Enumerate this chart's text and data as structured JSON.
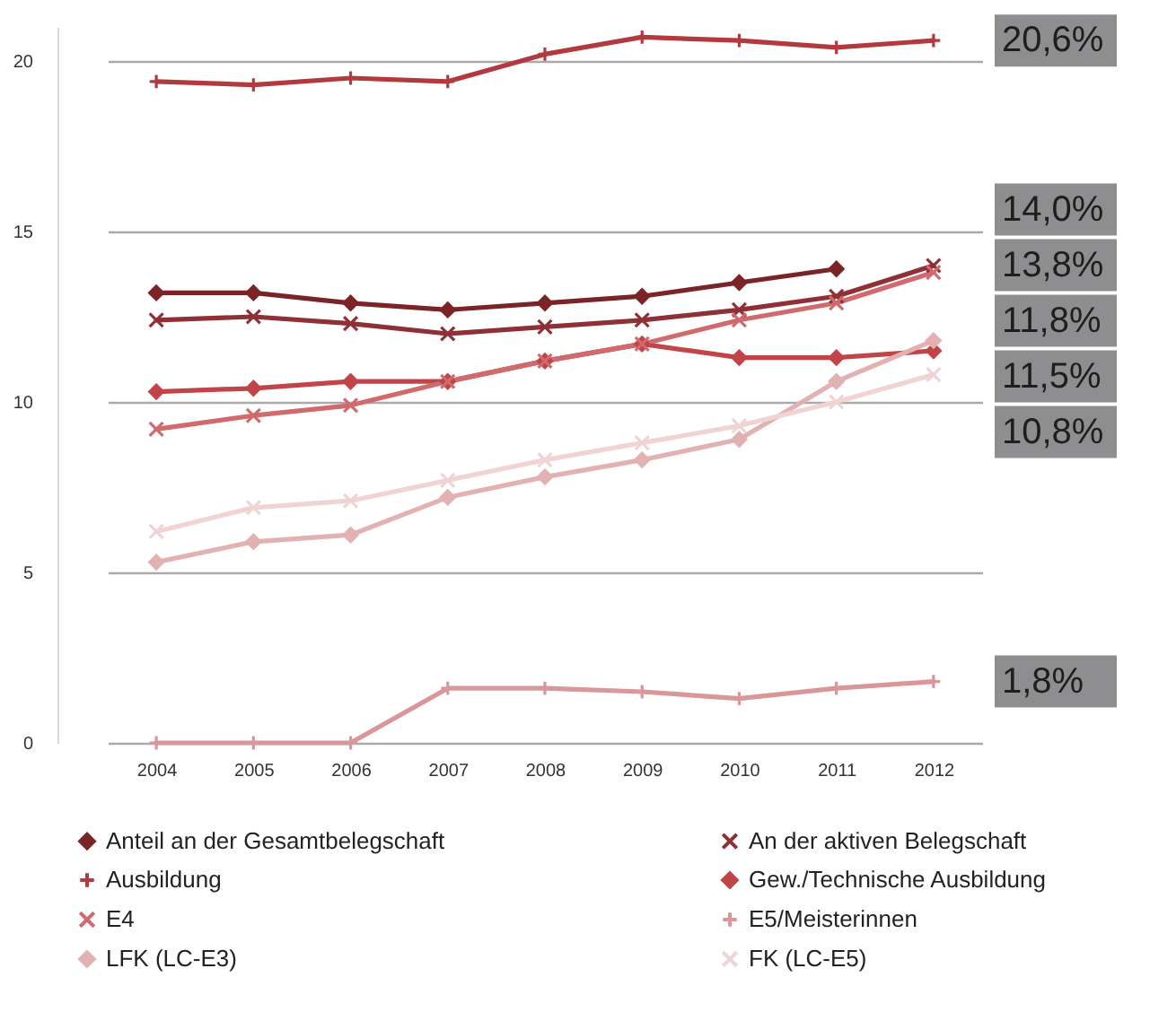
{
  "chart_data": {
    "type": "line",
    "categories": [
      "2004",
      "2005",
      "2006",
      "2007",
      "2008",
      "2009",
      "2010",
      "2011",
      "2012"
    ],
    "ylim": [
      0,
      21
    ],
    "yticks": [
      0,
      5,
      10,
      15,
      20
    ],
    "grid": "y",
    "legend": "bottom",
    "line_style": "solid",
    "series": [
      {
        "name": "Anteil an der Gesamtbelegschaft",
        "color": "#7b2428",
        "marker": "diamond",
        "values": [
          13.2,
          13.2,
          12.9,
          12.7,
          12.9,
          13.1,
          13.5,
          13.9,
          null
        ]
      },
      {
        "name": "An der aktiven Belegschaft",
        "color": "#8e3035",
        "marker": "cross",
        "values": [
          12.4,
          12.5,
          12.3,
          12.0,
          12.2,
          12.4,
          12.7,
          13.1,
          14.0
        ]
      },
      {
        "name": "Ausbildung",
        "color": "#b23a3e",
        "marker": "plus",
        "values": [
          19.4,
          19.3,
          19.5,
          19.4,
          20.2,
          20.7,
          20.6,
          20.4,
          20.6
        ]
      },
      {
        "name": "Gew./Technische Ausbildung",
        "color": "#c04448",
        "marker": "diamond",
        "values": [
          10.3,
          10.4,
          10.6,
          10.6,
          11.2,
          11.7,
          11.3,
          11.3,
          11.5
        ]
      },
      {
        "name": "E4",
        "color": "#d06a6d",
        "marker": "cross",
        "values": [
          9.2,
          9.6,
          9.9,
          10.6,
          11.2,
          11.7,
          12.4,
          12.9,
          13.8
        ]
      },
      {
        "name": "E5/Meisterinnen",
        "color": "#d99799",
        "marker": "plus",
        "values": [
          0,
          0,
          0,
          1.6,
          1.6,
          1.5,
          1.3,
          1.6,
          1.8
        ]
      },
      {
        "name": "LFK (LC-E3)",
        "color": "#e2b1b2",
        "marker": "diamond",
        "values": [
          5.3,
          5.9,
          6.1,
          7.2,
          7.8,
          8.3,
          8.9,
          10.6,
          11.8
        ]
      },
      {
        "name": "FK (LC-E5)",
        "color": "#f0d4d4",
        "marker": "cross",
        "values": [
          6.2,
          6.9,
          7.1,
          7.7,
          8.3,
          8.8,
          9.3,
          10.0,
          10.8
        ]
      }
    ],
    "annotations": [
      {
        "text": "20,6%",
        "x": "2012",
        "y": 20.6
      },
      {
        "text": "14,0%",
        "x": "2012",
        "y": 14.0
      },
      {
        "text": "13,8%",
        "x": "2012",
        "y": 13.8
      },
      {
        "text": "11,8%",
        "x": "2012",
        "y": 11.8
      },
      {
        "text": "11,5%",
        "x": "2012",
        "y": 11.5
      },
      {
        "text": "10,8%",
        "x": "2012",
        "y": 10.8
      },
      {
        "text": "1,8%",
        "x": "2012",
        "y": 1.8
      }
    ]
  }
}
